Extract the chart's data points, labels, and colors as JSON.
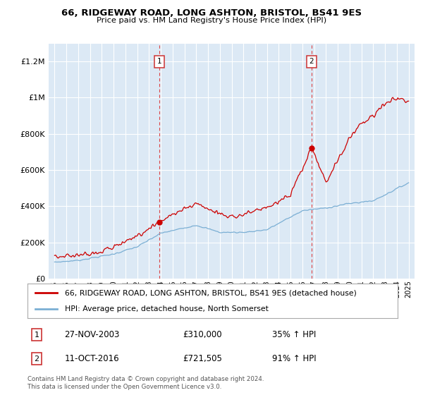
{
  "title": "66, RIDGEWAY ROAD, LONG ASHTON, BRISTOL, BS41 9ES",
  "subtitle": "Price paid vs. HM Land Registry's House Price Index (HPI)",
  "legend_line1": "66, RIDGEWAY ROAD, LONG ASHTON, BRISTOL, BS41 9ES (detached house)",
  "legend_line2": "HPI: Average price, detached house, North Somerset",
  "sale1_date": "27-NOV-2003",
  "sale1_price": 310000,
  "sale1_label": "£310,000",
  "sale1_pct": "35% ↑ HPI",
  "sale1_year": 2003.9,
  "sale2_date": "11-OCT-2016",
  "sale2_price": 721505,
  "sale2_label": "£721,505",
  "sale2_pct": "91% ↑ HPI",
  "sale2_year": 2016.78,
  "footer1": "Contains HM Land Registry data © Crown copyright and database right 2024.",
  "footer2": "This data is licensed under the Open Government Licence v3.0.",
  "ylim_max": 1300000,
  "xmin": 1994.5,
  "xmax": 2025.5,
  "fig_bg": "#ffffff",
  "plot_bg": "#dce9f5",
  "line_color_red": "#cc0000",
  "line_color_blue": "#7bafd4",
  "grid_color": "#ffffff",
  "dashed_color": "#dd4444",
  "yticks": [
    0,
    200000,
    400000,
    600000,
    800000,
    1000000,
    1200000
  ],
  "ylabels": [
    "£0",
    "£200K",
    "£400K",
    "£600K",
    "£800K",
    "£1M",
    "£1.2M"
  ]
}
